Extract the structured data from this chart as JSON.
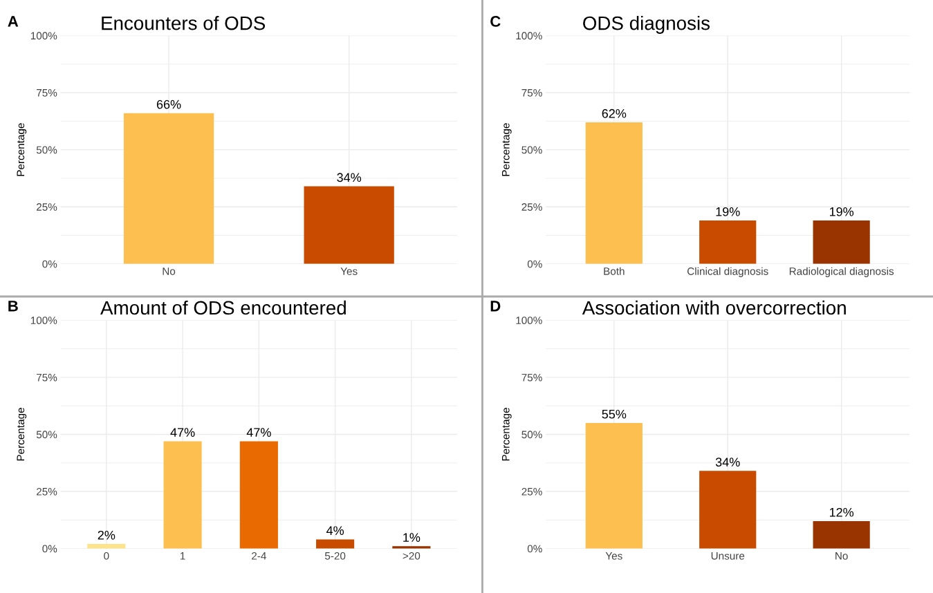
{
  "chart_data": [
    {
      "type": "bar",
      "title": "Encounters of ODS",
      "ylabel": "Percentage",
      "annotations": [
        "A"
      ],
      "categories": [
        "No",
        "Yes"
      ],
      "values": [
        66,
        34
      ],
      "colors": [
        "#fdbf4f",
        "#c84b00"
      ],
      "data_labels": true,
      "value_labels": [
        "66%",
        "34%"
      ],
      "ylim": [
        0,
        100
      ],
      "yticks": [
        {
          "value": 0,
          "label": "0%"
        },
        {
          "value": 12.5,
          "label": null
        },
        {
          "value": 25,
          "label": "25%"
        },
        {
          "value": 37.5,
          "label": null
        },
        {
          "value": 50,
          "label": "50%"
        },
        {
          "value": 62.5,
          "label": null
        },
        {
          "value": 75,
          "label": "75%"
        },
        {
          "value": 87.5,
          "label": null
        },
        {
          "value": 100,
          "label": "100%"
        }
      ],
      "grid": true,
      "legend": false
    },
    {
      "type": "bar",
      "title": "ODS diagnosis",
      "ylabel": "Percentage",
      "annotations": [
        "C"
      ],
      "categories": [
        "Both",
        "Clinical diagnosis",
        "Radiological diagnosis"
      ],
      "values": [
        62,
        19,
        19
      ],
      "colors": [
        "#fdbf4f",
        "#c84b00",
        "#993300"
      ],
      "data_labels": true,
      "value_labels": [
        "62%",
        "19%",
        "19%"
      ],
      "ylim": [
        0,
        100
      ],
      "yticks": [
        {
          "value": 0,
          "label": "0%"
        },
        {
          "value": 12.5,
          "label": null
        },
        {
          "value": 25,
          "label": "25%"
        },
        {
          "value": 37.5,
          "label": null
        },
        {
          "value": 50,
          "label": "50%"
        },
        {
          "value": 62.5,
          "label": null
        },
        {
          "value": 75,
          "label": "75%"
        },
        {
          "value": 87.5,
          "label": null
        },
        {
          "value": 100,
          "label": "100%"
        }
      ],
      "grid": true,
      "legend": false
    },
    {
      "type": "bar",
      "title": "Amount of ODS encountered",
      "ylabel": "Percentage",
      "annotations": [
        "B"
      ],
      "categories": [
        "0",
        "1",
        "2-4",
        "5-20",
        ">20"
      ],
      "values": [
        2,
        47,
        47,
        4,
        1
      ],
      "colors": [
        "#fde38a",
        "#fdbf4f",
        "#e86a00",
        "#c84b00",
        "#993300"
      ],
      "data_labels": true,
      "value_labels": [
        "2%",
        "47%",
        "47%",
        "4%",
        "1%"
      ],
      "ylim": [
        0,
        100
      ],
      "yticks": [
        {
          "value": 0,
          "label": "0%"
        },
        {
          "value": 12.5,
          "label": null
        },
        {
          "value": 25,
          "label": "25%"
        },
        {
          "value": 37.5,
          "label": null
        },
        {
          "value": 50,
          "label": "50%"
        },
        {
          "value": 62.5,
          "label": null
        },
        {
          "value": 75,
          "label": "75%"
        },
        {
          "value": 87.5,
          "label": null
        },
        {
          "value": 100,
          "label": "100%"
        }
      ],
      "grid": true,
      "legend": false
    },
    {
      "type": "bar",
      "title": "Association with overcorrection",
      "ylabel": "Percentage",
      "annotations": [
        "D"
      ],
      "categories": [
        "Yes",
        "Unsure",
        "No"
      ],
      "values": [
        55,
        34,
        12
      ],
      "colors": [
        "#fdbf4f",
        "#c84b00",
        "#993300"
      ],
      "data_labels": true,
      "value_labels": [
        "55%",
        "34%",
        "12%"
      ],
      "ylim": [
        0,
        100
      ],
      "yticks": [
        {
          "value": 0,
          "label": "0%"
        },
        {
          "value": 12.5,
          "label": null
        },
        {
          "value": 25,
          "label": "25%"
        },
        {
          "value": 37.5,
          "label": null
        },
        {
          "value": 50,
          "label": "50%"
        },
        {
          "value": 62.5,
          "label": null
        },
        {
          "value": 75,
          "label": "75%"
        },
        {
          "value": 87.5,
          "label": null
        },
        {
          "value": 100,
          "label": "100%"
        }
      ],
      "grid": true,
      "legend": false
    }
  ]
}
